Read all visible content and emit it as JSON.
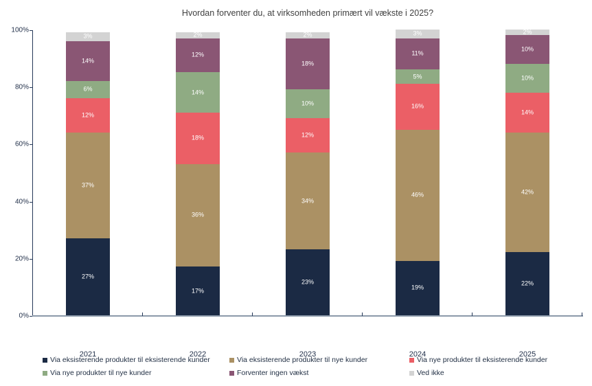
{
  "chart_data": {
    "type": "bar",
    "variant": "stacked-percent-column",
    "title": "Hvordan forventer du, at virksomheden primært vil vækste i 2025?",
    "categories": [
      "2021",
      "2022",
      "2023",
      "2024",
      "2025"
    ],
    "series": [
      {
        "name": "Via eksisterende produkter til eksisterende kunder",
        "color": "#1b2a44",
        "values": [
          27,
          17,
          23,
          19,
          22
        ]
      },
      {
        "name": "Via eksisterende produkter til nye kunder",
        "color": "#ab9164",
        "values": [
          37,
          36,
          34,
          46,
          42
        ]
      },
      {
        "name": "Via nye produkter til eksisterende kunder",
        "color": "#eb5f66",
        "values": [
          12,
          18,
          12,
          16,
          14
        ]
      },
      {
        "name": "Via nye produkter til nye kunder",
        "color": "#8fab83",
        "values": [
          6,
          14,
          10,
          5,
          10
        ]
      },
      {
        "name": "Forventer ingen vækst",
        "color": "#8a5674",
        "values": [
          14,
          12,
          18,
          11,
          10
        ]
      },
      {
        "name": "Ved ikke",
        "color": "#d3d3d3",
        "values": [
          3,
          2,
          2,
          3,
          2
        ]
      }
    ],
    "data_label_suffix": "%",
    "y_ticks": [
      {
        "value": 0,
        "label": "0%"
      },
      {
        "value": 20,
        "label": "20%"
      },
      {
        "value": 40,
        "label": "40%"
      },
      {
        "value": 60,
        "label": "60%"
      },
      {
        "value": 80,
        "label": "80%"
      },
      {
        "value": 100,
        "label": "100%"
      }
    ],
    "ylim": [
      0,
      100
    ],
    "grid": false,
    "legend_position": "bottom",
    "colors": {
      "axis_x_line": "#8b99a9",
      "axis_y_line": "#243757",
      "tick_text": "#22304a",
      "title_text": "#3f3f3f",
      "data_label_text": "#ffffff"
    }
  }
}
